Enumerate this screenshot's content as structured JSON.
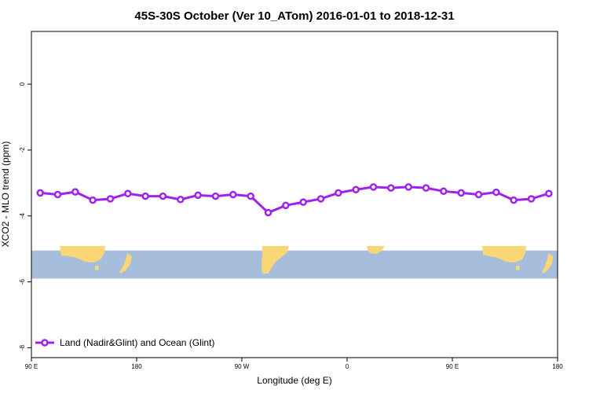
{
  "chart_data": {
    "type": "line",
    "title": "45S-30S October (Ver 10_ATom)   2016-01-01 to 2018-12-31",
    "xlabel": "Longitude (deg E)",
    "ylabel": "XCO2 - MLO trend (ppm)",
    "x_ticks": [
      {
        "value": 90,
        "label": "90 E"
      },
      {
        "value": 180,
        "label": "180"
      },
      {
        "value": 270,
        "label": "90 W"
      },
      {
        "value": 360,
        "label": "0"
      },
      {
        "value": 450,
        "label": "90 E"
      },
      {
        "value": 540,
        "label": "180"
      }
    ],
    "y_ticks": [
      {
        "value": 0,
        "label": "0"
      },
      {
        "value": -2,
        "label": "-2"
      },
      {
        "value": -4,
        "label": "-4"
      },
      {
        "value": -6,
        "label": "-6"
      },
      {
        "value": -8,
        "label": "-8"
      }
    ],
    "xlim": [
      90,
      540
    ],
    "ylim": [
      -8.3,
      1.6
    ],
    "grid": false,
    "legend_position": "bottom-left",
    "series": [
      {
        "name": "Land (Nadir&Glint) and Ocean (Glint)",
        "color": "#a020f0",
        "x": [
          97.5,
          112.5,
          127.5,
          142.5,
          157.5,
          172.5,
          187.5,
          202.5,
          217.5,
          232.5,
          247.5,
          262.5,
          277.5,
          292.5,
          307.5,
          322.5,
          337.5,
          352.5,
          367.5,
          382.5,
          397.5,
          412.5,
          427.5,
          442.5,
          457.5,
          472.5,
          487.5,
          502.5,
          517.5,
          532.5
        ],
        "y": [
          -3.3,
          -3.35,
          -3.27,
          -3.52,
          -3.48,
          -3.32,
          -3.4,
          -3.4,
          -3.5,
          -3.37,
          -3.4,
          -3.35,
          -3.4,
          -3.9,
          -3.68,
          -3.58,
          -3.48,
          -3.3,
          -3.2,
          -3.12,
          -3.15,
          -3.12,
          -3.15,
          -3.25,
          -3.3,
          -3.35,
          -3.28,
          -3.52,
          -3.48,
          -3.32
        ]
      }
    ],
    "map_strip": {
      "y_range": [
        -5.05,
        -5.9
      ],
      "ocean_color": "#a6bddb",
      "land_color": "#f9d776"
    }
  }
}
